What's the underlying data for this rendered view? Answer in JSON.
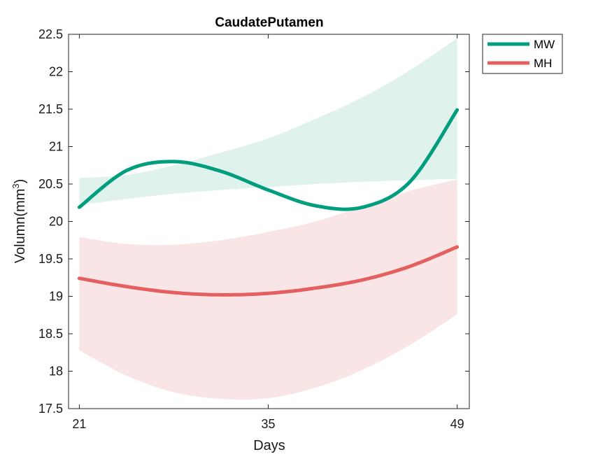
{
  "chart_data": {
    "type": "line",
    "title": "CaudatePutamen",
    "xlabel": "Days",
    "ylabel": "Volumn(mm",
    "ylabel_sup": "3",
    "ylabel_suffix": ")",
    "xlim": [
      20.2,
      49.9
    ],
    "ylim": [
      17.5,
      22.5
    ],
    "xticks": [
      21,
      35,
      49
    ],
    "yticks": [
      17.5,
      18,
      18.5,
      19,
      19.5,
      20,
      20.5,
      21,
      21.5,
      22,
      22.5
    ],
    "grid": false,
    "legend_position": "outside-top-right",
    "x": [
      21,
      24.5,
      28,
      31.5,
      35,
      38.5,
      42,
      45.5,
      49
    ],
    "series": [
      {
        "name": "MW",
        "color": "#009e7e",
        "band_color": "#d5eee6",
        "values": [
          20.19,
          20.68,
          20.8,
          20.67,
          20.42,
          20.21,
          20.19,
          20.53,
          21.49
        ],
        "band_lower": [
          20.22,
          20.3,
          20.37,
          20.42,
          20.46,
          20.5,
          20.53,
          20.55,
          20.57
        ],
        "band_upper": [
          20.58,
          20.62,
          20.75,
          20.92,
          21.11,
          21.37,
          21.66,
          22.02,
          22.45
        ]
      },
      {
        "name": "MH",
        "color": "#e46060",
        "band_color": "#f7dcdc",
        "values": [
          19.24,
          19.13,
          19.05,
          19.02,
          19.04,
          19.11,
          19.22,
          19.4,
          19.66
        ],
        "band_lower": [
          18.28,
          17.94,
          17.72,
          17.63,
          17.64,
          17.78,
          18.02,
          18.35,
          18.76
        ],
        "band_upper": [
          19.79,
          19.7,
          19.69,
          19.75,
          19.86,
          20.0,
          20.2,
          20.41,
          20.56
        ]
      }
    ]
  }
}
